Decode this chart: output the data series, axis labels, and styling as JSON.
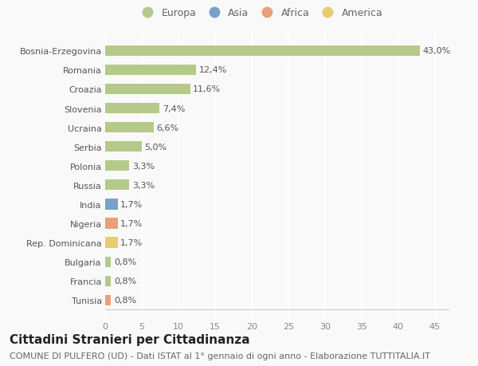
{
  "categories": [
    "Bosnia-Erzegovina",
    "Romania",
    "Croazia",
    "Slovenia",
    "Ucraina",
    "Serbia",
    "Polonia",
    "Russia",
    "India",
    "Nigeria",
    "Rep. Dominicana",
    "Bulgaria",
    "Francia",
    "Tunisia"
  ],
  "values": [
    43.0,
    12.4,
    11.6,
    7.4,
    6.6,
    5.0,
    3.3,
    3.3,
    1.7,
    1.7,
    1.7,
    0.8,
    0.8,
    0.8
  ],
  "labels": [
    "43,0%",
    "12,4%",
    "11,6%",
    "7,4%",
    "6,6%",
    "5,0%",
    "3,3%",
    "3,3%",
    "1,7%",
    "1,7%",
    "1,7%",
    "0,8%",
    "0,8%",
    "0,8%"
  ],
  "colors": [
    "#b5c98a",
    "#b5c98a",
    "#b5c98a",
    "#b5c98a",
    "#b5c98a",
    "#b5c98a",
    "#b5c98a",
    "#b5c98a",
    "#7a9fcb",
    "#e8a07a",
    "#e8cc6e",
    "#b5c98a",
    "#b5c98a",
    "#e8a07a"
  ],
  "legend": [
    {
      "label": "Europa",
      "color": "#b5c98a"
    },
    {
      "label": "Asia",
      "color": "#7a9fcb"
    },
    {
      "label": "Africa",
      "color": "#e8a07a"
    },
    {
      "label": "America",
      "color": "#e8cc6e"
    }
  ],
  "xlim": [
    0,
    47
  ],
  "xticks": [
    0,
    5,
    10,
    15,
    20,
    25,
    30,
    35,
    40,
    45
  ],
  "title": "Cittadini Stranieri per Cittadinanza",
  "subtitle": "COMUNE DI PULFERO (UD) - Dati ISTAT al 1° gennaio di ogni anno - Elaborazione TUTTITALIA.IT",
  "background_color": "#f9f9f9",
  "grid_color": "#ffffff",
  "bar_height": 0.55,
  "title_fontsize": 11,
  "subtitle_fontsize": 8,
  "label_fontsize": 8,
  "tick_fontsize": 8,
  "legend_fontsize": 9
}
